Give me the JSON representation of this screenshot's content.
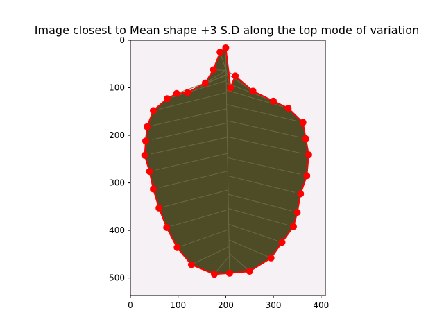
{
  "chart_data": {
    "type": "scatter",
    "title": "Image closest to Mean shape +3 S.D along the top mode of variation",
    "xlabel": "",
    "ylabel": "",
    "xlim": [
      0,
      409
    ],
    "ylim": [
      537,
      0
    ],
    "y_inverted": true,
    "grid": false,
    "x_ticks": [
      0,
      100,
      200,
      300,
      400
    ],
    "y_ticks": [
      0,
      100,
      200,
      300,
      400,
      500
    ],
    "background_image": "leaf-photo",
    "series": [
      {
        "color": "#ff0000",
        "marker": "circle",
        "line": true,
        "x": [
          200,
          210,
          220,
          257,
          300,
          331,
          362,
          368,
          374,
          370,
          357,
          350,
          342,
          318,
          295,
          250,
          208,
          176,
          128,
          98,
          76,
          60,
          48,
          40,
          30,
          32,
          35,
          48,
          77,
          97,
          120,
          157,
          174,
          188
        ],
        "y": [
          16,
          100,
          75,
          107,
          128,
          143,
          173,
          207,
          241,
          285,
          323,
          362,
          392,
          425,
          458,
          486,
          490,
          492,
          472,
          436,
          394,
          353,
          313,
          276,
          242,
          212,
          182,
          148,
          123,
          112,
          110,
          90,
          62,
          25
        ]
      }
    ]
  }
}
